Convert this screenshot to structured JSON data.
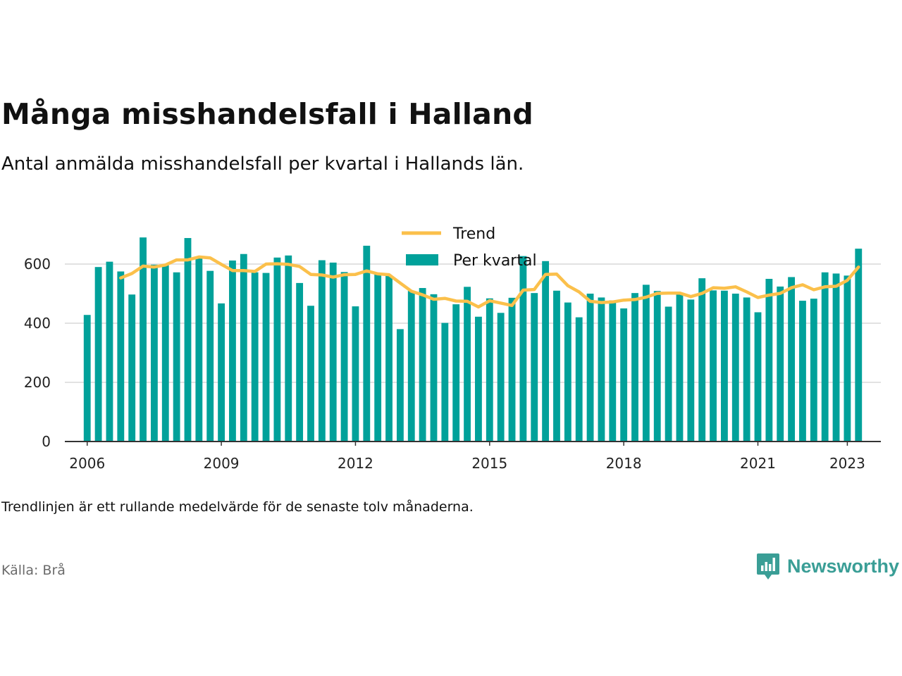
{
  "title": "Många misshandelsfall i Halland",
  "subtitle": "Antal anmälda misshandelsfall per kvartal i Hallands län.",
  "note": "Trendlinjen är ett rullande medelvärde för de senaste tolv månaderna.",
  "source": "Källa: Brå",
  "brand": {
    "name": "Newsworthy",
    "icon": "newsworthy-logo-icon",
    "color": "#3a9e96"
  },
  "colors": {
    "bars": "#00a19a",
    "trend": "#fbc04b",
    "grid": "#d9d9d9",
    "axis": "#333333"
  },
  "chart_data": {
    "type": "bar",
    "x_unit": "quarter",
    "x_start": "2006 Q1",
    "xlim": [
      "2005 Q3",
      "2023 Q4"
    ],
    "ylim": [
      0,
      720
    ],
    "yticks": [
      0,
      200,
      400,
      600
    ],
    "xticks": [
      "2006",
      "2009",
      "2012",
      "2015",
      "2018",
      "2021",
      "2023"
    ],
    "grid": true,
    "legend_position": "top-center",
    "series": [
      {
        "name": "Per kvartal",
        "type": "bar",
        "values": [
          428,
          590,
          608,
          575,
          497,
          690,
          598,
          596,
          572,
          688,
          620,
          577,
          467,
          612,
          634,
          572,
          570,
          622,
          629,
          536,
          459,
          613,
          605,
          573,
          457,
          662,
          567,
          561,
          380,
          509,
          519,
          498,
          401,
          464,
          523,
          422,
          484,
          435,
          486,
          627,
          502,
          610,
          510,
          470,
          420,
          500,
          487,
          477,
          450,
          502,
          530,
          509,
          456,
          497,
          480,
          552,
          511,
          510,
          500,
          487,
          437,
          550,
          524,
          556,
          476,
          483,
          572,
          568,
          561,
          652
        ]
      },
      {
        "name": "Trend",
        "type": "line",
        "values": [
          null,
          null,
          null,
          553,
          568,
          593,
          590,
          597,
          614,
          614,
          624,
          621,
          599,
          578,
          578,
          575,
          600,
          601,
          599,
          592,
          565,
          563,
          556,
          564,
          565,
          577,
          567,
          564,
          536,
          508,
          496,
          481,
          484,
          475,
          474,
          455,
          476,
          468,
          460,
          512,
          514,
          565,
          566,
          527,
          506,
          474,
          470,
          472,
          478,
          480,
          488,
          501,
          502,
          502,
          490,
          501,
          520,
          518,
          523,
          506,
          487,
          495,
          501,
          520,
          530,
          513,
          523,
          525,
          545,
          590
        ]
      }
    ]
  }
}
